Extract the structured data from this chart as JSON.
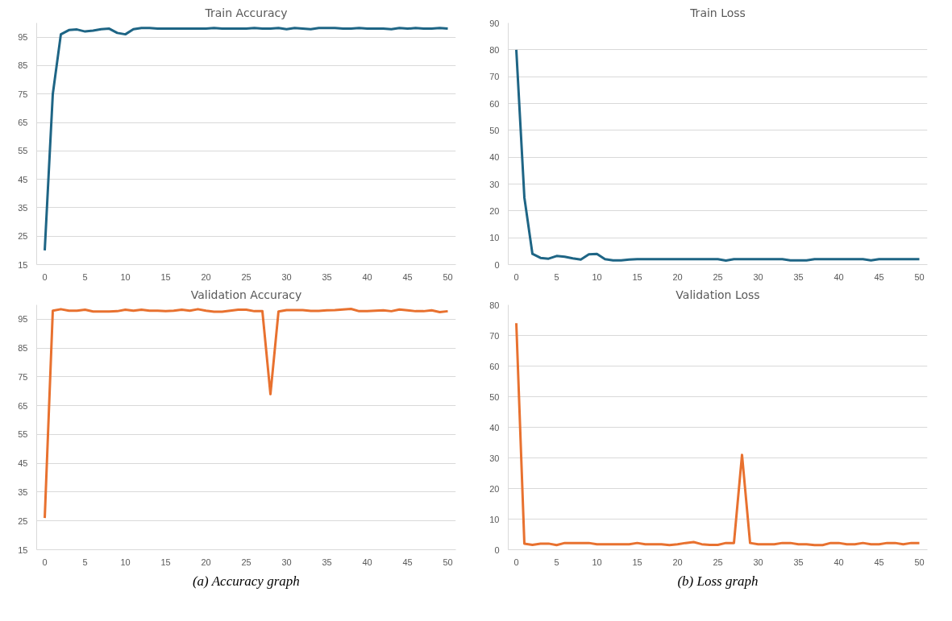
{
  "chart_data": [
    {
      "type": "line",
      "title": "Train Accuracy",
      "x": [
        0,
        1,
        2,
        3,
        4,
        5,
        6,
        7,
        8,
        9,
        10,
        11,
        12,
        13,
        14,
        15,
        16,
        17,
        18,
        19,
        20,
        21,
        22,
        23,
        24,
        25,
        26,
        27,
        28,
        29,
        30,
        31,
        32,
        33,
        34,
        35,
        36,
        37,
        38,
        39,
        40,
        41,
        42,
        43,
        44,
        45,
        46,
        47,
        48,
        49,
        50
      ],
      "series": [
        {
          "color": "#1e6585",
          "values": [
            20,
            75,
            96,
            97.5,
            97.7,
            97,
            97.3,
            97.8,
            98,
            96.5,
            96,
            97.8,
            98.2,
            98.2,
            98,
            98,
            98,
            98,
            98,
            98,
            98,
            98.2,
            98,
            98,
            98,
            98,
            98.2,
            98,
            98,
            98.2,
            97.8,
            98.2,
            98,
            97.8,
            98.2,
            98.2,
            98.2,
            98,
            98,
            98.2,
            98,
            98,
            98,
            97.8,
            98.2,
            98,
            98.2,
            98,
            98,
            98.2,
            98
          ]
        }
      ],
      "xlim": [
        -1,
        51
      ],
      "xticks": [
        0,
        5,
        10,
        15,
        20,
        25,
        30,
        35,
        40,
        45,
        50
      ],
      "ylim": [
        15,
        100
      ],
      "yticks": [
        15,
        25,
        35,
        45,
        55,
        65,
        75,
        85,
        95
      ],
      "grid": "y"
    },
    {
      "type": "line",
      "title": "Train Loss",
      "x": [
        0,
        1,
        2,
        3,
        4,
        5,
        6,
        7,
        8,
        9,
        10,
        11,
        12,
        13,
        14,
        15,
        16,
        17,
        18,
        19,
        20,
        21,
        22,
        23,
        24,
        25,
        26,
        27,
        28,
        29,
        30,
        31,
        32,
        33,
        34,
        35,
        36,
        37,
        38,
        39,
        40,
        41,
        42,
        43,
        44,
        45,
        46,
        47,
        48,
        49,
        50
      ],
      "series": [
        {
          "color": "#1e6585",
          "values": [
            80,
            25,
            4,
            2.5,
            2.2,
            3.2,
            2.9,
            2.3,
            1.9,
            3.8,
            4,
            2,
            1.6,
            1.6,
            1.9,
            2,
            2,
            2,
            2,
            2,
            2,
            2,
            2,
            2,
            2,
            2,
            1.5,
            2,
            2,
            2,
            2,
            2,
            2,
            2,
            1.6,
            1.6,
            1.6,
            2,
            2,
            2,
            2,
            2,
            2,
            2,
            1.6,
            2,
            2,
            2,
            2,
            2,
            2
          ]
        }
      ],
      "xlim": [
        -1,
        51
      ],
      "xticks": [
        0,
        5,
        10,
        15,
        20,
        25,
        30,
        35,
        40,
        45,
        50
      ],
      "ylim": [
        0,
        90
      ],
      "yticks": [
        0,
        10,
        20,
        30,
        40,
        50,
        60,
        70,
        80,
        90
      ],
      "grid": "y"
    },
    {
      "type": "line",
      "title": "Validation Accuracy",
      "x": [
        0,
        1,
        2,
        3,
        4,
        5,
        6,
        7,
        8,
        9,
        10,
        11,
        12,
        13,
        14,
        15,
        16,
        17,
        18,
        19,
        20,
        21,
        22,
        23,
        24,
        25,
        26,
        27,
        28,
        29,
        30,
        31,
        32,
        33,
        34,
        35,
        36,
        37,
        38,
        39,
        40,
        41,
        42,
        43,
        44,
        45,
        46,
        47,
        48,
        49,
        50
      ],
      "series": [
        {
          "color": "#e8712f",
          "values": [
            26,
            98,
            98.5,
            98,
            98,
            98.3,
            97.7,
            97.7,
            97.7,
            97.8,
            98.3,
            98,
            98.3,
            98,
            98,
            97.8,
            98,
            98.3,
            98,
            98.5,
            98,
            97.6,
            97.6,
            98,
            98.3,
            98.3,
            97.8,
            97.8,
            69,
            97.7,
            98.2,
            98.2,
            98.2,
            97.9,
            97.9,
            98.1,
            98.2,
            98.4,
            98.6,
            97.8,
            97.8,
            98,
            98.1,
            97.8,
            98.4,
            98.1,
            97.8,
            97.8,
            98.1,
            97.5,
            97.8
          ]
        }
      ],
      "xlim": [
        -1,
        51
      ],
      "xticks": [
        0,
        5,
        10,
        15,
        20,
        25,
        30,
        35,
        40,
        45,
        50
      ],
      "ylim": [
        15,
        100
      ],
      "yticks": [
        15,
        25,
        35,
        45,
        55,
        65,
        75,
        85,
        95
      ],
      "grid": "y",
      "annotations": [
        "(a) Accuracy graph"
      ]
    },
    {
      "type": "line",
      "title": "Validation Loss",
      "x": [
        0,
        1,
        2,
        3,
        4,
        5,
        6,
        7,
        8,
        9,
        10,
        11,
        12,
        13,
        14,
        15,
        16,
        17,
        18,
        19,
        20,
        21,
        22,
        23,
        24,
        25,
        26,
        27,
        28,
        29,
        30,
        31,
        32,
        33,
        34,
        35,
        36,
        37,
        38,
        39,
        40,
        41,
        42,
        43,
        44,
        45,
        46,
        47,
        48,
        49,
        50
      ],
      "series": [
        {
          "color": "#e8712f",
          "values": [
            74,
            2,
            1.6,
            2,
            2,
            1.5,
            2.2,
            2.2,
            2.2,
            2.2,
            1.8,
            1.8,
            1.8,
            1.8,
            1.8,
            2.2,
            1.8,
            1.8,
            1.8,
            1.5,
            1.8,
            2.2,
            2.5,
            1.8,
            1.6,
            1.6,
            2.2,
            2.2,
            31,
            2.2,
            1.8,
            1.8,
            1.8,
            2.2,
            2.2,
            1.8,
            1.8,
            1.5,
            1.5,
            2.2,
            2.2,
            1.8,
            1.8,
            2.2,
            1.8,
            1.8,
            2.2,
            2.2,
            1.8,
            2.2,
            2.2
          ]
        }
      ],
      "xlim": [
        -1,
        51
      ],
      "xticks": [
        0,
        5,
        10,
        15,
        20,
        25,
        30,
        35,
        40,
        45,
        50
      ],
      "ylim": [
        0,
        80
      ],
      "yticks": [
        0,
        10,
        20,
        30,
        40,
        50,
        60,
        70,
        80
      ],
      "grid": "y",
      "annotations": [
        "(b) Loss graph"
      ]
    }
  ]
}
